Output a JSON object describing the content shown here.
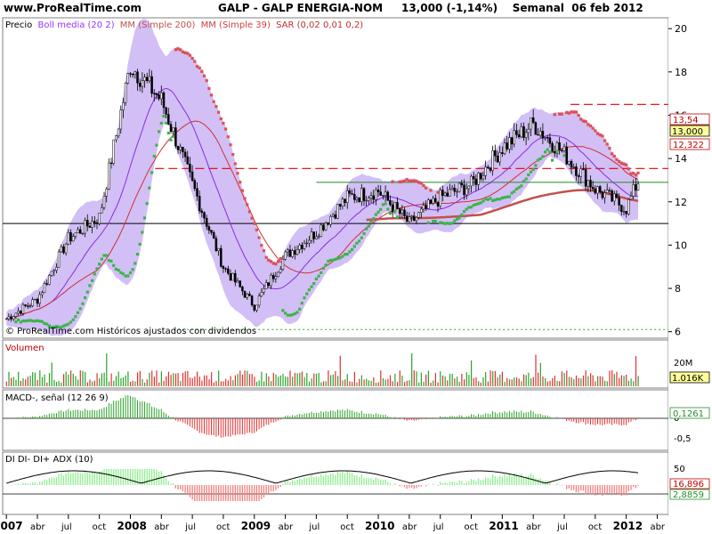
{
  "header": {
    "site": "www.ProRealTime.com",
    "title": "GALP - GALP ENERGIA-NOM     13,000 (-1,14%)    Semanal  06 feb 2012"
  },
  "chart_data": [
    {
      "type": "line",
      "panel": "price",
      "legend": [
        {
          "label": "Precio",
          "color": "#000000"
        },
        {
          "label": "Boll media (20 2)",
          "color": "#9b30ff"
        },
        {
          "label": "MM (Simple 200)",
          "color": "#c0504d"
        },
        {
          "label": "MM (Simple 39)",
          "color": "#d04040"
        },
        {
          "label": "SAR (0,02 0,01 0,2)",
          "color": "#c03030"
        }
      ],
      "footer": "© ProRealTime.com  Históricos ajustados con dividendos",
      "ylim": [
        5.7,
        20.5
      ],
      "y_ticks": [
        "20",
        "18",
        "16",
        "14",
        "12",
        "10",
        "8",
        "6"
      ],
      "value_labels": [
        "13,54",
        "13,000",
        "12,322"
      ],
      "x_ticks": [
        "2007",
        "abr",
        "jul",
        "oct",
        "2008",
        "abr",
        "jul",
        "oct",
        "2009",
        "abr",
        "jul",
        "oct",
        "2010",
        "abr",
        "jul",
        "oct",
        "2011",
        "abr",
        "jul",
        "oct",
        "2012",
        "abr"
      ],
      "close_series": {
        "x": [
          2007.0,
          2007.25,
          2007.5,
          2007.75,
          2008.0,
          2008.25,
          2008.5,
          2008.75,
          2009.0,
          2009.25,
          2009.5,
          2009.75,
          2010.0,
          2010.25,
          2010.5,
          2010.75,
          2011.0,
          2011.25,
          2011.5,
          2011.75,
          2012.0,
          2012.1
        ],
        "y": [
          6.6,
          7.5,
          10.3,
          11.3,
          18.3,
          16.7,
          12.8,
          9.0,
          7.2,
          9.5,
          10.6,
          12.2,
          12.5,
          11.0,
          12.2,
          12.8,
          14.5,
          15.6,
          14.2,
          12.6,
          11.7,
          13.0
        ]
      },
      "annotations": {
        "hlines": [
          16.5,
          13.54,
          12.9,
          11.0,
          6.1
        ]
      }
    },
    {
      "type": "bar",
      "panel": "volume",
      "title": "Volumen",
      "y_ticks": [
        "20M"
      ],
      "value_label": "1.016K"
    },
    {
      "type": "bar",
      "panel": "macd",
      "title": "MACD-, señal (12 26 9)",
      "y_ticks": [
        "0",
        "-0,5"
      ],
      "value_label": "0,1261"
    },
    {
      "type": "area",
      "panel": "dmi",
      "title": "DI DI- DI+ ADX (10)",
      "y_ticks": [
        "50"
      ],
      "value_labels": [
        "16,896",
        "2,8859"
      ]
    }
  ]
}
